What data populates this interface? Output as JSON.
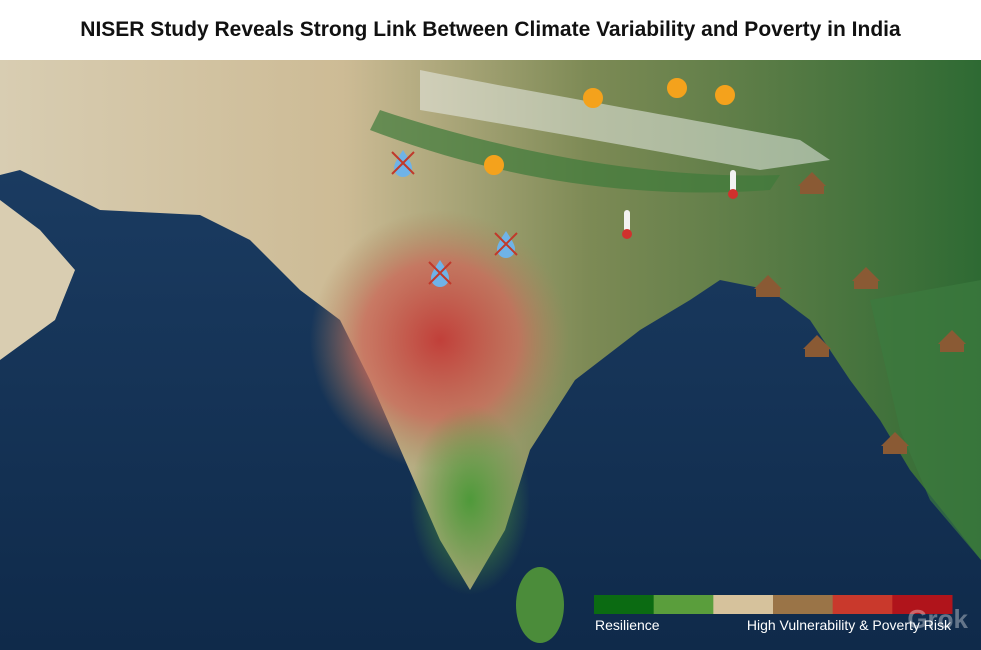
{
  "header": {
    "title": "NISER Study Reveals Strong Link Between Climate Variability and Poverty in India"
  },
  "legend": {
    "colors": [
      "#0b6b12",
      "#5a9e3c",
      "#d6c29c",
      "#9a7447",
      "#c9392c",
      "#b0141b"
    ],
    "low_label": "Resilience",
    "high_label": "High Vulnerability & Poverty Risk"
  },
  "watermark": "Grok"
}
